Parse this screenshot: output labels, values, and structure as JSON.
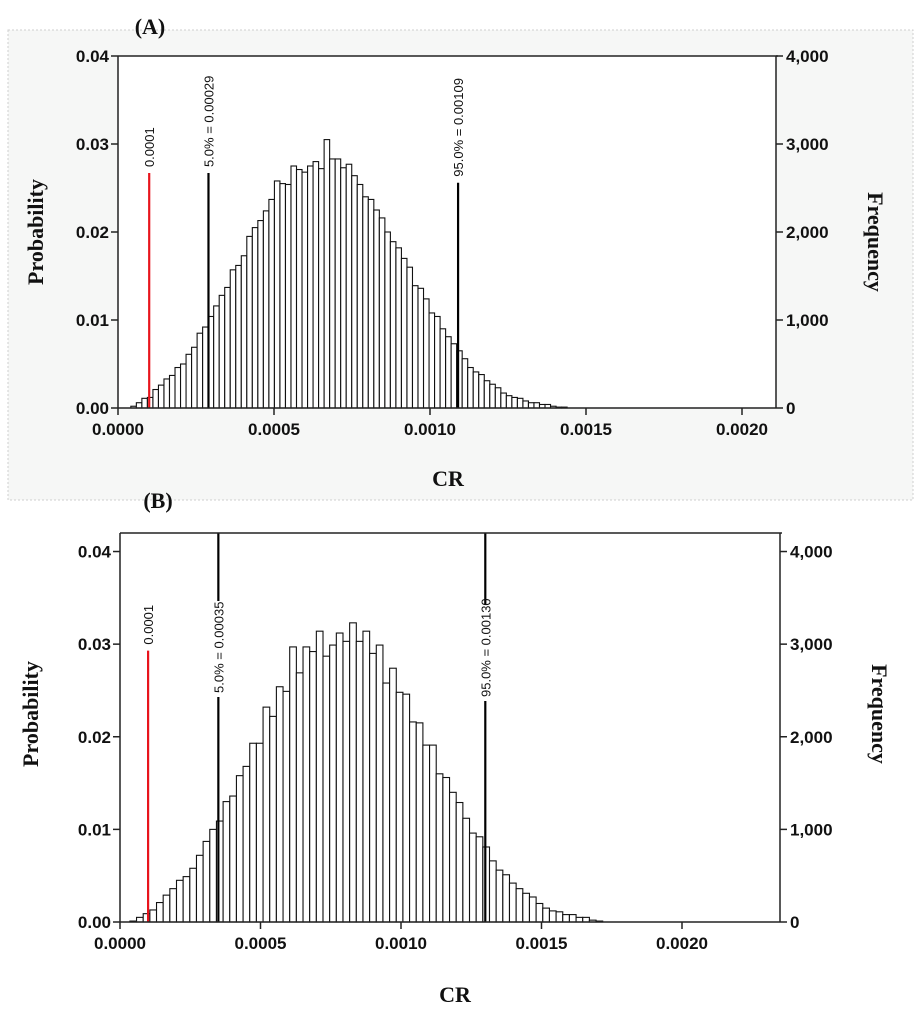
{
  "chart_data": [
    {
      "type": "bar",
      "panel_label": "(A)",
      "xlabel": "CR",
      "ylabel": "Probability",
      "y2label": "Frequency",
      "xlim": [
        0,
        0.0021
      ],
      "ylim": [
        0,
        0.04
      ],
      "y2lim": [
        0,
        4000
      ],
      "xticks": [
        "0.0000",
        "0.0005",
        "0.0010",
        "0.0015",
        "0.0020"
      ],
      "xtick_values": [
        0,
        0.0005,
        0.001,
        0.0015,
        0.002
      ],
      "yticks": [
        "0.00",
        "0.01",
        "0.02",
        "0.03",
        "0.04"
      ],
      "y2ticks": [
        "0",
        "1,000",
        "2,000",
        "3,000",
        "4,000"
      ],
      "bin_first_center": 5e-05,
      "bin_width": 1.77e-05,
      "values": [
        0.0002,
        0.0006,
        0.0011,
        0.0012,
        0.0021,
        0.0026,
        0.0033,
        0.0037,
        0.0046,
        0.005,
        0.0061,
        0.0069,
        0.0085,
        0.0092,
        0.0104,
        0.0116,
        0.0128,
        0.0137,
        0.0157,
        0.0162,
        0.0173,
        0.0195,
        0.0205,
        0.0213,
        0.0224,
        0.0237,
        0.0258,
        0.0255,
        0.0254,
        0.0275,
        0.0271,
        0.0268,
        0.0275,
        0.028,
        0.0272,
        0.0305,
        0.0283,
        0.0283,
        0.0273,
        0.0277,
        0.0264,
        0.0254,
        0.024,
        0.0237,
        0.0225,
        0.0216,
        0.02,
        0.0189,
        0.0182,
        0.017,
        0.016,
        0.0139,
        0.0136,
        0.0124,
        0.0108,
        0.0104,
        0.009,
        0.0081,
        0.0073,
        0.0065,
        0.0056,
        0.0046,
        0.0041,
        0.0038,
        0.0031,
        0.0027,
        0.0023,
        0.0017,
        0.0014,
        0.0012,
        0.0011,
        0.0008,
        0.0006,
        0.0006,
        0.0004,
        0.0004,
        0.0002,
        0.0001,
        0.0001
      ],
      "markers": [
        {
          "x": 0.0001,
          "label": "0.0001",
          "color": "#e8141c",
          "height": 0.0267
        },
        {
          "x": 0.00029,
          "label": "5.0% = 0.00029",
          "color": "#000000",
          "height": 0.0267
        },
        {
          "x": 0.00109,
          "label": "95.0% = 0.00109",
          "color": "#000000",
          "height": 0.0256
        }
      ]
    },
    {
      "type": "bar",
      "panel_label": "(B)",
      "xlabel": "CR",
      "ylabel": "Probability",
      "y2label": "Frequency",
      "xlim": [
        0,
        0.0021
      ],
      "ylim": [
        0,
        0.042
      ],
      "y2lim": [
        0,
        4200
      ],
      "xticks": [
        "0.0000",
        "0.0005",
        "0.0010",
        "0.0015",
        "0.0020"
      ],
      "xtick_values": [
        0,
        0.0005,
        0.001,
        0.0015,
        0.002
      ],
      "yticks": [
        "0.00",
        "0.01",
        "0.02",
        "0.03",
        "0.04"
      ],
      "y2ticks": [
        "0",
        "1,000",
        "2,000",
        "3,000",
        "4,000"
      ],
      "bin_first_center": 4.7e-05,
      "bin_width": 2.37e-05,
      "values": [
        0.0001,
        0.0005,
        0.0009,
        0.0013,
        0.0021,
        0.0029,
        0.0036,
        0.0045,
        0.0049,
        0.0058,
        0.0072,
        0.0087,
        0.01,
        0.0109,
        0.013,
        0.0136,
        0.0158,
        0.0168,
        0.0193,
        0.0193,
        0.0232,
        0.0222,
        0.0254,
        0.0249,
        0.0297,
        0.0269,
        0.0297,
        0.0292,
        0.0314,
        0.0287,
        0.0299,
        0.0312,
        0.0303,
        0.0323,
        0.0303,
        0.0314,
        0.029,
        0.0299,
        0.0258,
        0.0274,
        0.0248,
        0.0246,
        0.0216,
        0.0215,
        0.0191,
        0.0191,
        0.016,
        0.0156,
        0.014,
        0.0129,
        0.0112,
        0.0096,
        0.0092,
        0.0081,
        0.0066,
        0.0056,
        0.0051,
        0.0042,
        0.0036,
        0.0031,
        0.0027,
        0.002,
        0.0015,
        0.0012,
        0.0011,
        0.0008,
        0.0008,
        0.0005,
        0.0005,
        0.0002,
        0.0001
      ],
      "markers": [
        {
          "x": 0.0001,
          "label": "0.0001",
          "color": "#e8141c",
          "height": 0.0293
        },
        {
          "x": 0.00035,
          "label": "5.0% = 0.00035",
          "color": "#000000",
          "height": 0.042
        },
        {
          "x": 0.0013,
          "label": "95.0% = 0.00130",
          "color": "#000000",
          "height": 0.042
        }
      ]
    }
  ]
}
